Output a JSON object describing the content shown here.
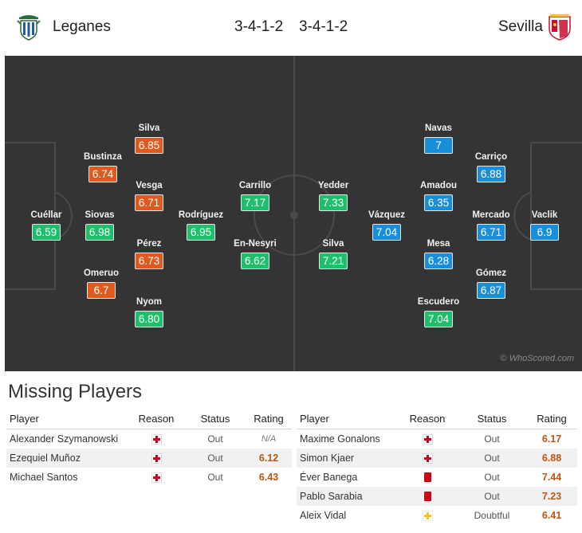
{
  "home": {
    "name": "Leganes",
    "formation": "3-4-1-2"
  },
  "away": {
    "name": "Sevilla",
    "formation": "3-4-1-2"
  },
  "pitch": {
    "watermark": "© WhoScored.com",
    "home_players": [
      {
        "name": "Cuéllar",
        "rating": "6.59"
      },
      {
        "name": "Siovas",
        "rating": "6.98"
      },
      {
        "name": "Bustinza",
        "rating": "6.74"
      },
      {
        "name": "Omeruo",
        "rating": "6.7"
      },
      {
        "name": "Silva",
        "rating": "6.85"
      },
      {
        "name": "Vesga",
        "rating": "6.71"
      },
      {
        "name": "Pérez",
        "rating": "6.73"
      },
      {
        "name": "Nyom",
        "rating": "6.80"
      },
      {
        "name": "Rodríguez",
        "rating": "6.95"
      },
      {
        "name": "Carrillo",
        "rating": "7.17"
      },
      {
        "name": "En-Nesyri",
        "rating": "6.62"
      }
    ],
    "away_players": [
      {
        "name": "Yedder",
        "rating": "7.33"
      },
      {
        "name": "Silva",
        "rating": "7.21"
      },
      {
        "name": "Vázquez",
        "rating": "7.04"
      },
      {
        "name": "Navas",
        "rating": "7"
      },
      {
        "name": "Amadou",
        "rating": "6.35"
      },
      {
        "name": "Mesa",
        "rating": "6.28"
      },
      {
        "name": "Escudero",
        "rating": "7.04"
      },
      {
        "name": "Carriço",
        "rating": "6.88"
      },
      {
        "name": "Mercado",
        "rating": "6.71"
      },
      {
        "name": "Gómez",
        "rating": "6.87"
      },
      {
        "name": "Vaclik",
        "rating": "6.9"
      }
    ]
  },
  "missing": {
    "title": "Missing Players",
    "headers": {
      "player": "Player",
      "reason": "Reason",
      "status": "Status",
      "rating": "Rating"
    },
    "home": [
      {
        "player": "Alexander Szymanowski",
        "reason": "injury-icon",
        "status": "Out",
        "rating": "N/A"
      },
      {
        "player": "Ezequiel Muñoz",
        "reason": "injury-icon",
        "status": "Out",
        "rating": "6.12"
      },
      {
        "player": "Michael Santos",
        "reason": "injury-icon",
        "status": "Out",
        "rating": "6.43"
      }
    ],
    "away": [
      {
        "player": "Maxime Gonalons",
        "reason": "injury-icon",
        "status": "Out",
        "rating": "6.17"
      },
      {
        "player": "Simon Kjaer",
        "reason": "injury-icon",
        "status": "Out",
        "rating": "6.88"
      },
      {
        "player": "Éver Banega",
        "reason": "red-card-icon",
        "status": "Out",
        "rating": "7.44"
      },
      {
        "player": "Pablo Sarabia",
        "reason": "red-card-icon",
        "status": "Out",
        "rating": "7.23"
      },
      {
        "player": "Aleix Vidal",
        "reason": "doubtful-icon",
        "status": "Doubtful",
        "rating": "6.41"
      }
    ]
  },
  "colors": {
    "pitch": "#343434",
    "home_rating": "#e0591e",
    "green_rating": "#1fbe6b",
    "away_rating": "#1a8fd9",
    "missing_rating": "#c25412"
  }
}
